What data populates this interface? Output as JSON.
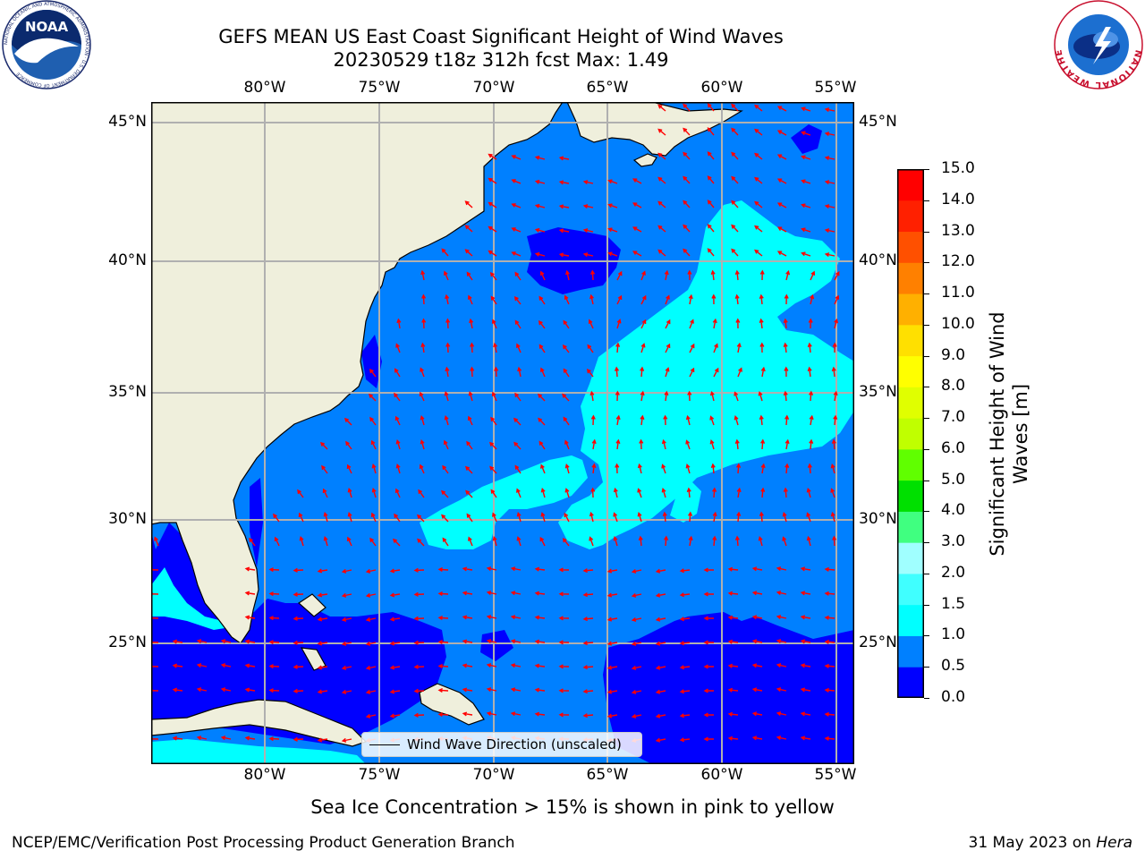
{
  "header": {
    "title_line1": "GEFS MEAN US East Coast Significant Height of Wind Waves",
    "title_line2": "20230529 t18z 312h fcst   Max: 1.49"
  },
  "logos": {
    "left": {
      "name": "NOAA",
      "ring_text": "NATIONAL OCEANIC AND ATMOSPHERIC ADMINISTRATION · U.S. DEPARTMENT OF COMMERCE"
    },
    "right": {
      "ring_text": "NATIONAL WEATHER SERVICE"
    }
  },
  "map": {
    "lon_labels": [
      "80°W",
      "75°W",
      "70°W",
      "65°W",
      "60°W",
      "55°W"
    ],
    "lat_labels": [
      "45°N",
      "40°N",
      "35°N",
      "30°N",
      "25°N"
    ],
    "legend_label": "Wind Wave Direction (unscaled)",
    "land_color": "#efefdc",
    "arrow_color": "#ff0000",
    "grid_color": "#b0b0b0"
  },
  "colorbar": {
    "label_line1": "Significant Height of Wind",
    "label_line2": "Waves [m]",
    "ticks": [
      "15.0",
      "14.0",
      "13.0",
      "12.0",
      "11.0",
      "10.0",
      "9.0",
      "8.0",
      "7.0",
      "6.0",
      "5.0",
      "4.0",
      "3.0",
      "2.0",
      "1.5",
      "1.0",
      "0.5",
      "0.0"
    ],
    "colors": [
      "#0000ff",
      "#0080ff",
      "#00ffff",
      "#40ffff",
      "#a0ffff",
      "#40ff80",
      "#00e000",
      "#60ff00",
      "#c0ff00",
      "#e0ff00",
      "#ffff00",
      "#ffe000",
      "#ffb000",
      "#ff8000",
      "#ff5000",
      "#ff2000",
      "#ff0000"
    ]
  },
  "notes": {
    "sea_ice": "Sea Ice Concentration > 15% is shown in pink to yellow",
    "producer": "NCEP/EMC/Verification Post Processing Product Generation Branch",
    "date": "31 May 2023 on ",
    "host": "Hera"
  }
}
